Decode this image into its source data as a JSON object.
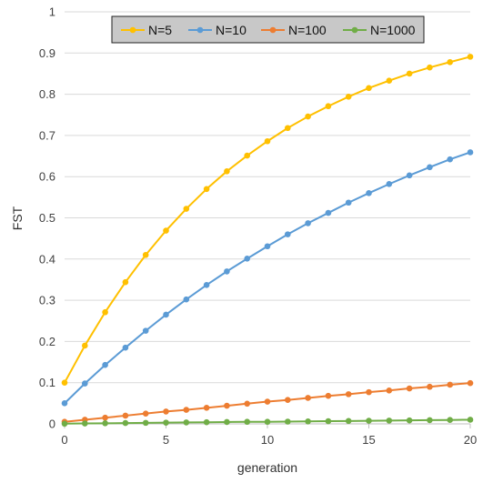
{
  "chart_data": {
    "type": "line",
    "title": "",
    "xlabel": "generation",
    "ylabel": "FST",
    "xlim": [
      0,
      20
    ],
    "ylim": [
      0,
      1
    ],
    "x_ticks": [
      0,
      5,
      10,
      15,
      20
    ],
    "y_ticks": [
      0,
      0.1,
      0.2,
      0.3,
      0.4,
      0.5,
      0.6,
      0.7,
      0.8,
      0.9,
      1
    ],
    "grid": "horizontal",
    "legend_position": "top-center",
    "x": [
      0,
      1,
      2,
      3,
      4,
      5,
      6,
      7,
      8,
      9,
      10,
      11,
      12,
      13,
      14,
      15,
      16,
      17,
      18,
      19,
      20
    ],
    "series": [
      {
        "name": "N=5",
        "color": "#FFC000",
        "values": [
          0.1,
          0.19,
          0.271,
          0.344,
          0.41,
          0.469,
          0.522,
          0.57,
          0.613,
          0.651,
          0.686,
          0.718,
          0.746,
          0.771,
          0.794,
          0.815,
          0.833,
          0.85,
          0.865,
          0.878,
          0.891
        ]
      },
      {
        "name": "N=10",
        "color": "#5B9BD5",
        "values": [
          0.05,
          0.098,
          0.143,
          0.185,
          0.226,
          0.265,
          0.302,
          0.337,
          0.37,
          0.401,
          0.431,
          0.46,
          0.487,
          0.512,
          0.537,
          0.56,
          0.582,
          0.603,
          0.623,
          0.642,
          0.659
        ]
      },
      {
        "name": "N=100",
        "color": "#ED7D31",
        "values": [
          0.005,
          0.01,
          0.015,
          0.02,
          0.025,
          0.03,
          0.034,
          0.039,
          0.044,
          0.049,
          0.054,
          0.058,
          0.063,
          0.068,
          0.072,
          0.077,
          0.081,
          0.086,
          0.09,
          0.095,
          0.099
        ]
      },
      {
        "name": "N=1000",
        "color": "#70AD47",
        "values": [
          0.0005,
          0.001,
          0.0015,
          0.002,
          0.0025,
          0.003,
          0.0035,
          0.004,
          0.0045,
          0.005,
          0.005,
          0.0055,
          0.006,
          0.0065,
          0.007,
          0.0075,
          0.008,
          0.0085,
          0.009,
          0.0095,
          0.01
        ]
      }
    ]
  }
}
